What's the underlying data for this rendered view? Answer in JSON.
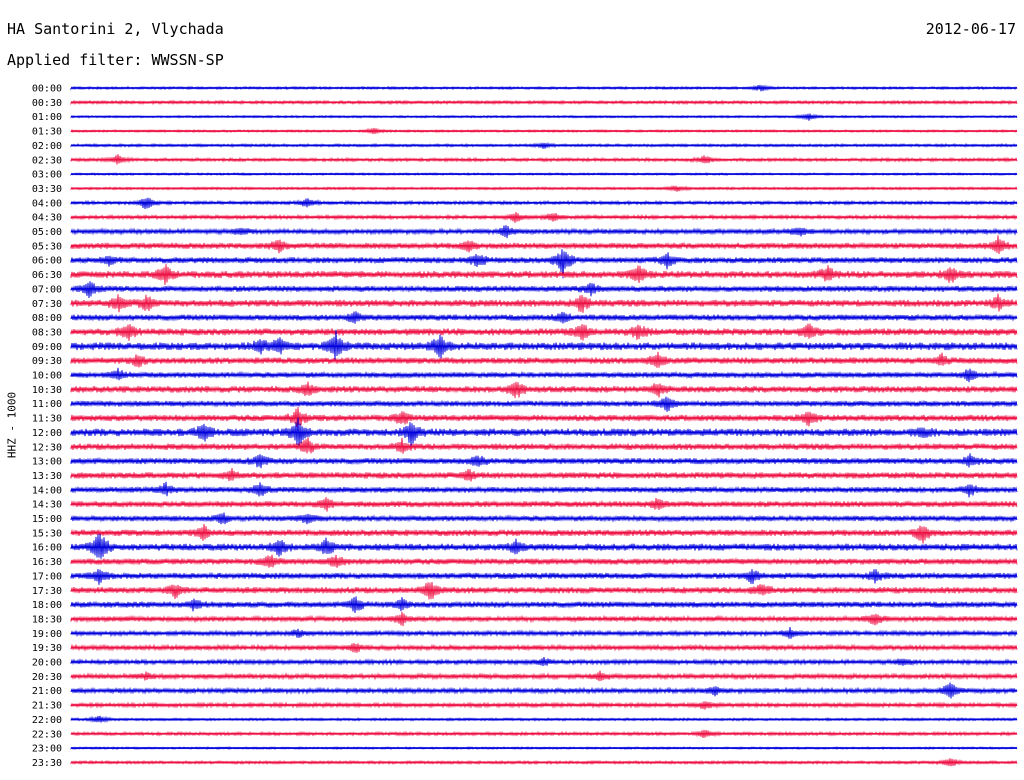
{
  "header": {
    "station": "HA Santorini 2, Vlychada",
    "date": "2012-06-17",
    "filter": "Applied filter: WWSSN-SP"
  },
  "channel_label": "HHZ - 1000",
  "colors": {
    "even_hour": "#0000dd",
    "half_hour": "#ee1144"
  },
  "chart_data": {
    "type": "line",
    "title": "HA Santorini 2, Vlychada",
    "subtitle": "Applied filter: WWSSN-SP",
    "ylabel": "HHZ - 1000",
    "x": "",
    "rows": [
      {
        "label": "00:00",
        "amp": 1.2,
        "events": [
          [
            0.73,
            4
          ]
        ]
      },
      {
        "label": "00:30",
        "amp": 1.5,
        "events": []
      },
      {
        "label": "01:00",
        "amp": 1.0,
        "events": [
          [
            0.78,
            4
          ]
        ]
      },
      {
        "label": "01:30",
        "amp": 1.1,
        "events": [
          [
            0.32,
            3
          ]
        ]
      },
      {
        "label": "02:00",
        "amp": 1.3,
        "events": [
          [
            0.5,
            3
          ]
        ]
      },
      {
        "label": "02:30",
        "amp": 1.6,
        "events": [
          [
            0.05,
            5
          ],
          [
            0.67,
            5
          ]
        ]
      },
      {
        "label": "03:00",
        "amp": 1.0,
        "events": []
      },
      {
        "label": "03:30",
        "amp": 1.2,
        "events": [
          [
            0.64,
            3
          ]
        ]
      },
      {
        "label": "04:00",
        "amp": 1.6,
        "events": [
          [
            0.08,
            8
          ],
          [
            0.25,
            5
          ]
        ]
      },
      {
        "label": "04:30",
        "amp": 1.8,
        "events": [
          [
            0.47,
            5
          ],
          [
            0.51,
            5
          ]
        ]
      },
      {
        "label": "05:00",
        "amp": 2.4,
        "events": [
          [
            0.18,
            4
          ],
          [
            0.46,
            6
          ],
          [
            0.77,
            5
          ]
        ]
      },
      {
        "label": "05:30",
        "amp": 3.0,
        "events": [
          [
            0.22,
            6
          ],
          [
            0.42,
            5
          ],
          [
            0.98,
            8
          ]
        ]
      },
      {
        "label": "06:00",
        "amp": 3.0,
        "events": [
          [
            0.04,
            5
          ],
          [
            0.43,
            7
          ],
          [
            0.52,
            16
          ],
          [
            0.63,
            7
          ]
        ]
      },
      {
        "label": "06:30",
        "amp": 3.5,
        "events": [
          [
            0.1,
            9
          ],
          [
            0.6,
            9
          ],
          [
            0.8,
            8
          ],
          [
            0.93,
            8
          ]
        ]
      },
      {
        "label": "07:00",
        "amp": 3.0,
        "events": [
          [
            0.02,
            8
          ],
          [
            0.55,
            6
          ]
        ]
      },
      {
        "label": "07:30",
        "amp": 3.5,
        "events": [
          [
            0.05,
            8
          ],
          [
            0.08,
            8
          ],
          [
            0.54,
            9
          ],
          [
            0.98,
            7
          ]
        ]
      },
      {
        "label": "08:00",
        "amp": 3.0,
        "events": [
          [
            0.3,
            6
          ],
          [
            0.52,
            6
          ]
        ]
      },
      {
        "label": "08:30",
        "amp": 3.5,
        "events": [
          [
            0.06,
            9
          ],
          [
            0.54,
            9
          ],
          [
            0.6,
            8
          ],
          [
            0.78,
            8
          ]
        ]
      },
      {
        "label": "09:00",
        "amp": 3.8,
        "events": [
          [
            0.22,
            8
          ],
          [
            0.28,
            16
          ],
          [
            0.39,
            12
          ],
          [
            0.2,
            7
          ]
        ]
      },
      {
        "label": "09:30",
        "amp": 3.2,
        "events": [
          [
            0.07,
            6
          ],
          [
            0.62,
            8
          ],
          [
            0.92,
            6
          ]
        ]
      },
      {
        "label": "10:00",
        "amp": 2.8,
        "events": [
          [
            0.05,
            5
          ],
          [
            0.95,
            7
          ]
        ]
      },
      {
        "label": "10:30",
        "amp": 3.3,
        "events": [
          [
            0.25,
            7
          ],
          [
            0.47,
            10
          ],
          [
            0.62,
            7
          ]
        ]
      },
      {
        "label": "11:00",
        "amp": 2.8,
        "events": [
          [
            0.63,
            8
          ]
        ]
      },
      {
        "label": "11:30",
        "amp": 3.2,
        "events": [
          [
            0.24,
            10
          ],
          [
            0.35,
            7
          ],
          [
            0.78,
            7
          ]
        ]
      },
      {
        "label": "12:00",
        "amp": 3.8,
        "events": [
          [
            0.14,
            9
          ],
          [
            0.24,
            14
          ],
          [
            0.36,
            12
          ],
          [
            0.9,
            5
          ]
        ]
      },
      {
        "label": "12:30",
        "amp": 3.2,
        "events": [
          [
            0.25,
            8
          ],
          [
            0.35,
            6
          ]
        ]
      },
      {
        "label": "13:00",
        "amp": 3.0,
        "events": [
          [
            0.2,
            7
          ],
          [
            0.43,
            6
          ],
          [
            0.95,
            6
          ]
        ]
      },
      {
        "label": "13:30",
        "amp": 3.2,
        "events": [
          [
            0.17,
            6
          ],
          [
            0.42,
            6
          ]
        ]
      },
      {
        "label": "14:00",
        "amp": 2.8,
        "events": [
          [
            0.1,
            6
          ],
          [
            0.2,
            7
          ],
          [
            0.95,
            6
          ]
        ]
      },
      {
        "label": "14:30",
        "amp": 3.0,
        "events": [
          [
            0.27,
            6
          ],
          [
            0.62,
            5
          ]
        ]
      },
      {
        "label": "15:00",
        "amp": 2.8,
        "events": [
          [
            0.16,
            6
          ],
          [
            0.25,
            5
          ]
        ]
      },
      {
        "label": "15:30",
        "amp": 3.2,
        "events": [
          [
            0.14,
            7
          ],
          [
            0.9,
            10
          ]
        ]
      },
      {
        "label": "16:00",
        "amp": 3.5,
        "events": [
          [
            0.03,
            18
          ],
          [
            0.22,
            9
          ],
          [
            0.27,
            8
          ],
          [
            0.47,
            7
          ]
        ]
      },
      {
        "label": "16:30",
        "amp": 3.0,
        "events": [
          [
            0.21,
            7
          ],
          [
            0.28,
            6
          ]
        ]
      },
      {
        "label": "17:00",
        "amp": 3.0,
        "events": [
          [
            0.03,
            7
          ],
          [
            0.72,
            7
          ],
          [
            0.85,
            6
          ]
        ]
      },
      {
        "label": "17:30",
        "amp": 3.2,
        "events": [
          [
            0.11,
            7
          ],
          [
            0.38,
            10
          ],
          [
            0.73,
            6
          ]
        ]
      },
      {
        "label": "18:00",
        "amp": 3.0,
        "events": [
          [
            0.13,
            6
          ],
          [
            0.3,
            8
          ],
          [
            0.35,
            6
          ]
        ]
      },
      {
        "label": "18:30",
        "amp": 2.6,
        "events": [
          [
            0.35,
            6
          ],
          [
            0.85,
            6
          ]
        ]
      },
      {
        "label": "19:00",
        "amp": 2.2,
        "events": [
          [
            0.24,
            4
          ],
          [
            0.76,
            5
          ]
        ]
      },
      {
        "label": "19:30",
        "amp": 2.4,
        "events": [
          [
            0.3,
            5
          ]
        ]
      },
      {
        "label": "20:00",
        "amp": 2.2,
        "events": [
          [
            0.5,
            4
          ],
          [
            0.88,
            4
          ]
        ]
      },
      {
        "label": "20:30",
        "amp": 2.4,
        "events": [
          [
            0.08,
            4
          ],
          [
            0.56,
            5
          ]
        ]
      },
      {
        "label": "21:00",
        "amp": 2.4,
        "events": [
          [
            0.68,
            4
          ],
          [
            0.93,
            9
          ]
        ]
      },
      {
        "label": "21:30",
        "amp": 2.0,
        "events": [
          [
            0.67,
            4
          ]
        ]
      },
      {
        "label": "22:00",
        "amp": 1.2,
        "events": [
          [
            0.03,
            4
          ]
        ]
      },
      {
        "label": "22:30",
        "amp": 1.6,
        "events": [
          [
            0.67,
            5
          ]
        ]
      },
      {
        "label": "23:00",
        "amp": 1.0,
        "events": []
      },
      {
        "label": "23:30",
        "amp": 1.4,
        "events": [
          [
            0.93,
            5
          ]
        ]
      }
    ]
  }
}
